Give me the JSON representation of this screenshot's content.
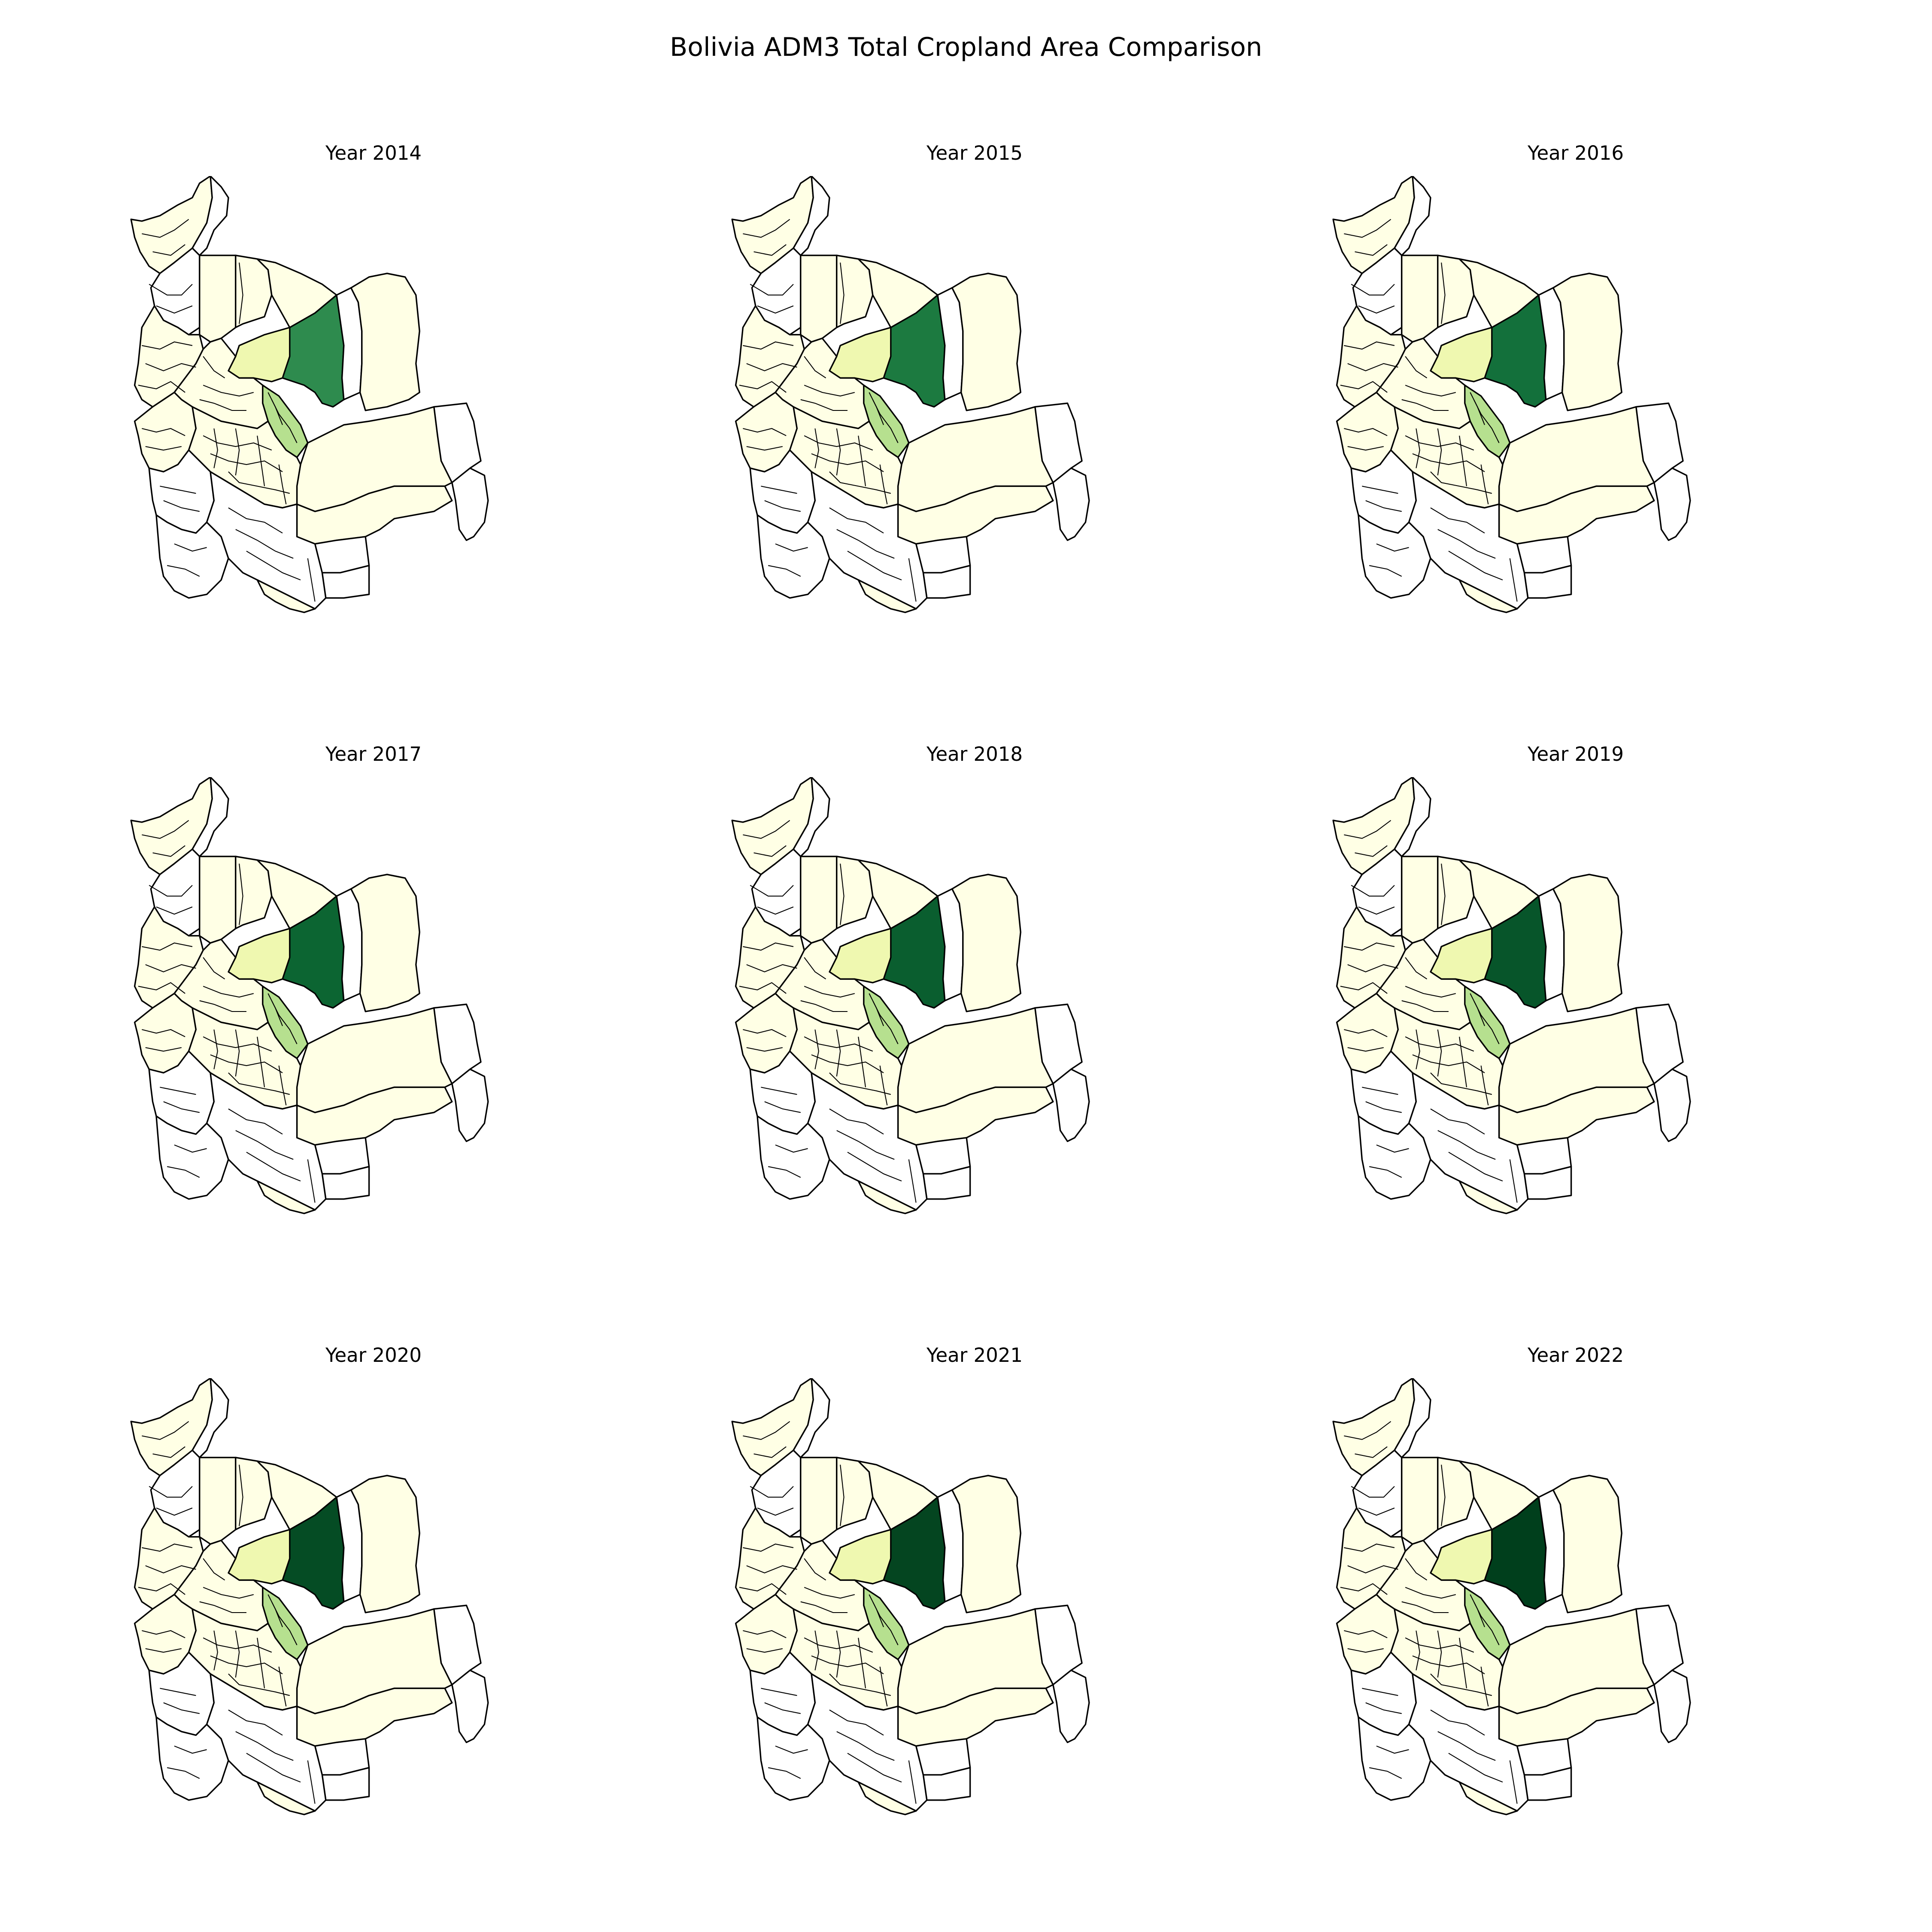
{
  "title": "Bolivia ADM3 Total Cropland Area Comparison",
  "colors": {
    "none": "#ffffff",
    "very_low": "#ffffe5",
    "low": "#eff8b0",
    "mid": "#b6e08f",
    "high_2014": "#2e8b4e",
    "high_2015": "#1c7a40",
    "high_2016": "#13703b",
    "high_2017": "#0c6532",
    "high_2018": "#0a5e2f",
    "high_2019": "#07552a",
    "high_2020": "#054c24",
    "high_2021": "#044520",
    "high_2022": "#003f1c"
  },
  "panels": [
    {
      "label": "Year 2014",
      "year": "2014"
    },
    {
      "label": "Year 2015",
      "year": "2015"
    },
    {
      "label": "Year 2016",
      "year": "2016"
    },
    {
      "label": "Year 2017",
      "year": "2017"
    },
    {
      "label": "Year 2018",
      "year": "2018"
    },
    {
      "label": "Year 2019",
      "year": "2019"
    },
    {
      "label": "Year 2020",
      "year": "2020"
    },
    {
      "label": "Year 2021",
      "year": "2021"
    },
    {
      "label": "Year 2022",
      "year": "2022"
    }
  ]
}
